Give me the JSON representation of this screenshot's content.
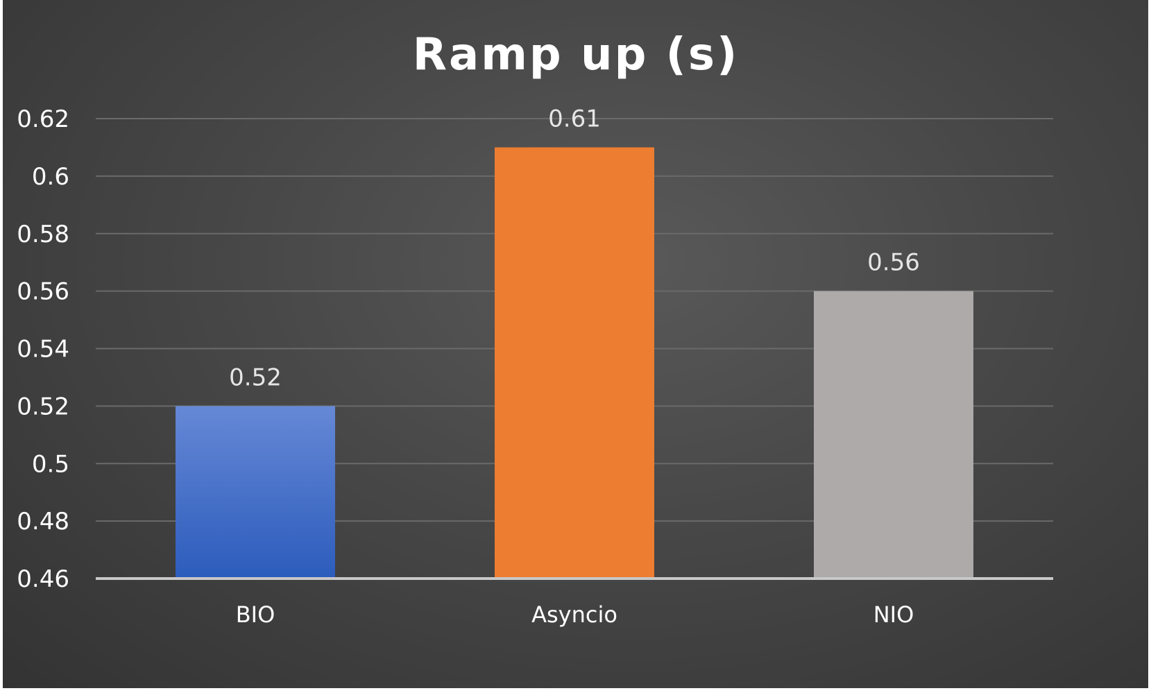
{
  "chart_data": {
    "type": "bar",
    "title": "Ramp up (s)",
    "categories": [
      "BIO",
      "Asyncio",
      "NIO"
    ],
    "values": [
      0.52,
      0.61,
      0.56
    ],
    "data_labels": [
      "0.52",
      "0.61",
      "0.56"
    ],
    "ylim": [
      0.46,
      0.62
    ],
    "y_ticks": [
      0.46,
      0.48,
      0.5,
      0.52,
      0.54,
      0.56,
      0.58,
      0.6,
      0.62
    ],
    "y_tick_labels": [
      "0.46",
      "0.48",
      "0.5",
      "0.52",
      "0.54",
      "0.56",
      "0.58",
      "0.6",
      "0.62"
    ],
    "bar_colors": [
      "#4a72c9",
      "#ed7d31",
      "#aeaaaa"
    ],
    "bar_gradient_top": [
      "#6688d6",
      "#ed7d31",
      "#aeaaaa"
    ],
    "bar_gradient_bottom": [
      "#2c5cbc",
      "#ed7d31",
      "#aeaaaa"
    ],
    "grid": true,
    "legend": "none",
    "background": "#474747"
  }
}
